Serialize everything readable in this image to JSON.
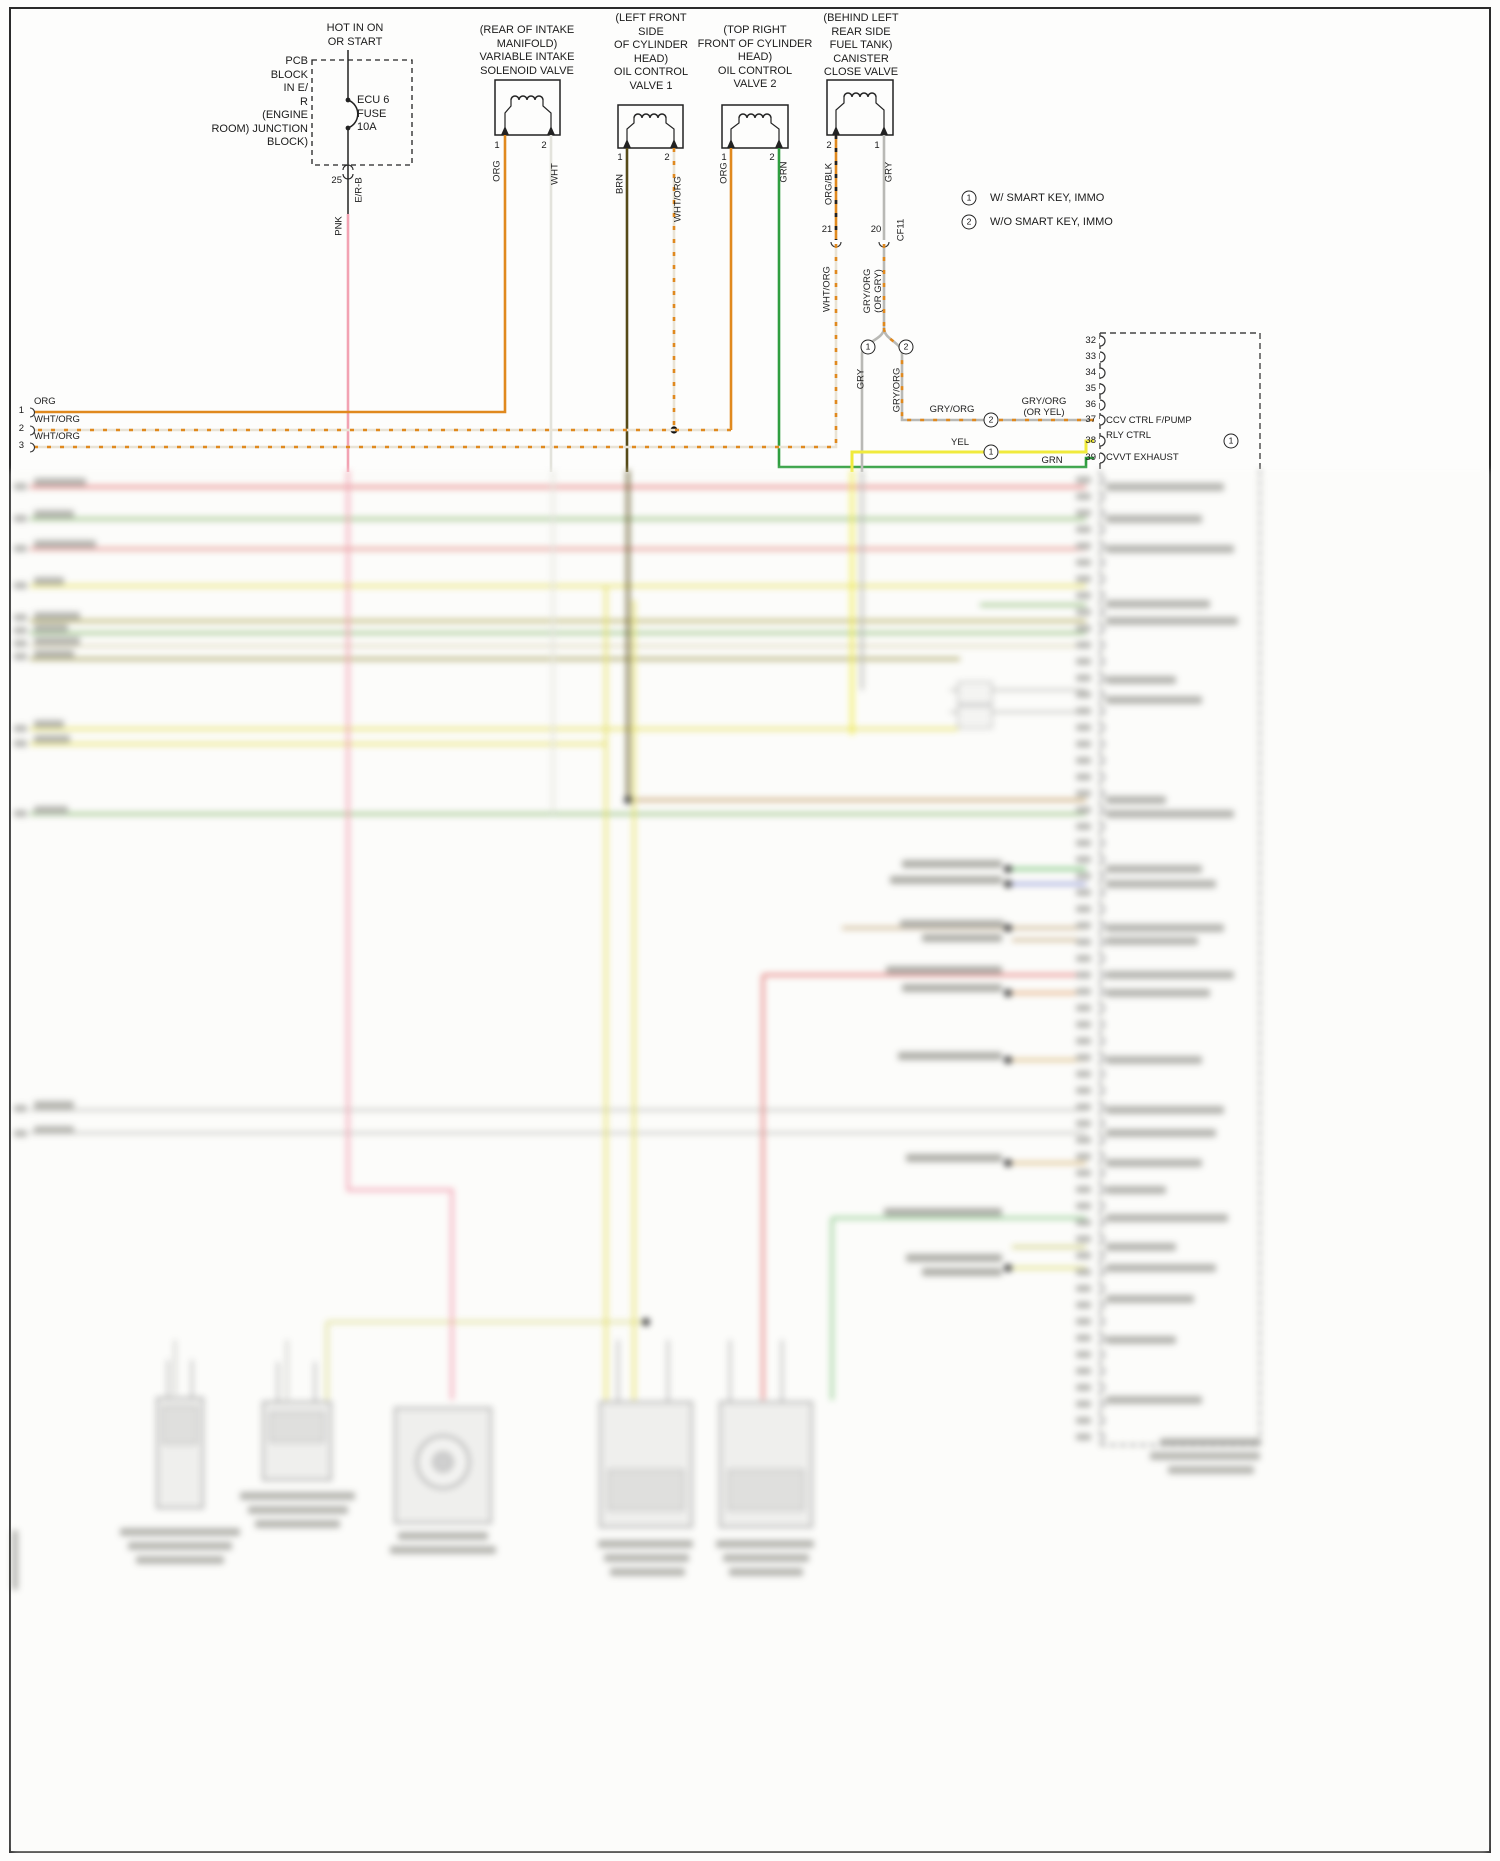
{
  "power": {
    "hot_label": "HOT IN ON\nOR START",
    "block_label": "PCB\nBLOCK\nIN E/\nR\n(ENGINE\nROOM) JUNCTION\nBLOCK)",
    "fuse_label": "ECU 6\nFUSE\n10A",
    "pin": "25",
    "wire_out": "E/R-B",
    "wire_color": "PNK"
  },
  "components": [
    {
      "name": "variable-intake-solenoid-valve",
      "location_name": "(REAR OF INTAKE\nMANIFOLD)\nVARIABLE INTAKE\nSOLENOID VALVE",
      "pins": [
        "1",
        "2"
      ],
      "wires": [
        "ORG",
        "WHT"
      ]
    },
    {
      "name": "oil-control-valve-1",
      "location_name": "(LEFT FRONT\nSIDE\nOF CYLINDER\nHEAD)\nOIL CONTROL\nVALVE 1",
      "pins": [
        "1",
        "2"
      ],
      "wires": [
        "BRN",
        "WHT/ORG"
      ]
    },
    {
      "name": "oil-control-valve-2",
      "location_name": "(TOP RIGHT\nFRONT OF CYLINDER\nHEAD)\nOIL CONTROL\nVALVE 2",
      "pins": [
        "1",
        "2"
      ],
      "wires": [
        "ORG",
        "GRN"
      ]
    },
    {
      "name": "canister-close-valve",
      "location_name": "(BEHIND LEFT\nREAR SIDE\nFUEL TANK)\nCANISTER\nCLOSE VALVE",
      "pins": [
        "2",
        "1"
      ],
      "wires": [
        "ORG/BLK",
        "GRY"
      ]
    }
  ],
  "ccv_connector": {
    "pin_a": "21",
    "pin_b": "20",
    "connector_id": "CF11",
    "wire_a": "WHT/ORG",
    "wire_b": "GRY/ORG\n(OR GRY)"
  },
  "branch": {
    "left_wire": "GRY",
    "right_wire": "GRY/ORG",
    "left_variant": "1",
    "right_variant": "2"
  },
  "legend": [
    {
      "symbol": "1",
      "text": "W/ SMART KEY, IMMO"
    },
    {
      "symbol": "2",
      "text": "W/O SMART KEY, IMMO"
    }
  ],
  "left_lines": [
    {
      "num": "1",
      "color": "ORG"
    },
    {
      "num": "2",
      "color": "WHT/ORG"
    },
    {
      "num": "3",
      "color": "WHT/ORG"
    }
  ],
  "ecm": {
    "pins": [
      "32",
      "33",
      "34",
      "35",
      "36",
      "37",
      "38",
      "39"
    ],
    "wire37": "GRY/ORG",
    "wire37b": "GRY/ORG\n(OR YEL)",
    "wire38": "YEL",
    "wire39": "GRN",
    "variant37": "2",
    "variant38": "1",
    "variant38b": "1",
    "label_37_38a": "CCV CTRL F/PUMP",
    "label_38b": "RLY CTRL",
    "label_39": "CVVT EXHAUST"
  },
  "colors": {
    "pnk": "#f2a2b2",
    "org": "#e0891e",
    "wht": "#e3e3dc",
    "brn": "#564a18",
    "grn": "#2f9e3f",
    "gry": "#b9b9b5",
    "yel": "#f0ea3c"
  }
}
